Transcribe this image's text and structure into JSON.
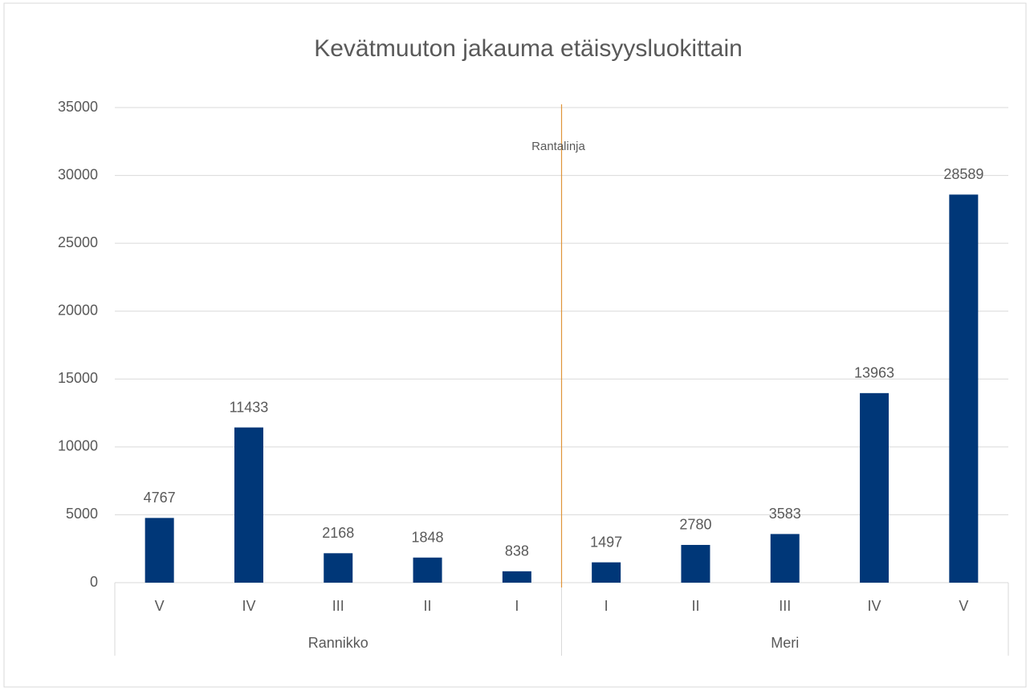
{
  "chart_data": {
    "type": "bar",
    "title": "Kevätmuuton jakauma etäisyysluokittain",
    "groups": [
      {
        "label": "Rannikko",
        "categories": [
          "V",
          "IV",
          "III",
          "II",
          "I"
        ]
      },
      {
        "label": "Meri",
        "categories": [
          "I",
          "II",
          "III",
          "IV",
          "V"
        ]
      }
    ],
    "values": [
      4767,
      11433,
      2168,
      1848,
      838,
      1497,
      2780,
      3583,
      13963,
      28589
    ],
    "color": "#003778",
    "ylim": [
      0,
      35000
    ],
    "yticks": [
      0,
      5000,
      10000,
      15000,
      20000,
      25000,
      30000,
      35000
    ],
    "grid": true,
    "annotation": "Rantalinja"
  }
}
